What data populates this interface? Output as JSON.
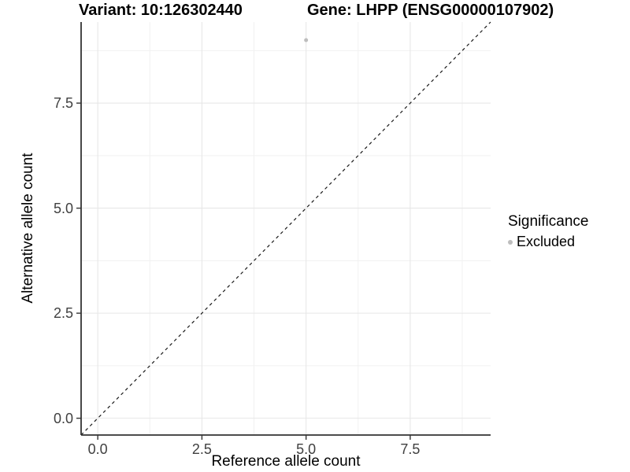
{
  "titles": {
    "variant": "Variant: 10:126302440",
    "gene": "Gene: LHPP (ENSG00000107902)"
  },
  "legend": {
    "title": "Significance",
    "items": [
      {
        "label": "Excluded",
        "color": "#bdbdbd"
      }
    ]
  },
  "colors": {
    "background": "#ffffff",
    "grid_major": "#e7e7e7",
    "grid_minor": "#f1f1f1",
    "axis_line": "#333333",
    "tick_mark": "#333333",
    "tick_label": "#404040",
    "reference_line": "#1a1a1a",
    "point": "#bdbdbd"
  },
  "chart_data": {
    "type": "scatter",
    "title": "Variant: 10:126302440",
    "subtitle": "Gene: LHPP (ENSG00000107902)",
    "xlabel": "Reference allele count",
    "ylabel": "Alternative allele count",
    "xlim": [
      -0.4,
      9.43
    ],
    "ylim": [
      -0.4,
      9.43
    ],
    "x_ticks": {
      "values": [
        0,
        2.5,
        5.0,
        7.5
      ],
      "labels": [
        "0.0",
        "2.5",
        "5.0",
        "7.5"
      ]
    },
    "y_ticks": {
      "values": [
        0,
        2.5,
        5.0,
        7.5
      ],
      "labels": [
        "0.0",
        "2.5",
        "5.0",
        "7.5"
      ]
    },
    "x_minor_ticks": [
      1.25,
      3.75,
      6.25,
      8.75
    ],
    "y_minor_ticks": [
      1.25,
      3.75,
      6.25,
      8.75
    ],
    "grid": true,
    "legend_position": "right",
    "reference_line": {
      "type": "identity (y = x)",
      "style": "dashed",
      "color": "#1a1a1a"
    },
    "series": [
      {
        "name": "Excluded",
        "color": "#bdbdbd",
        "points": [
          {
            "x": 5,
            "y": 9
          }
        ]
      }
    ]
  }
}
